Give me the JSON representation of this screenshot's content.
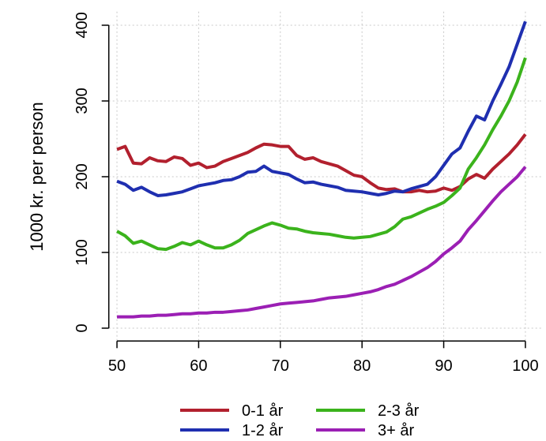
{
  "chart_data": {
    "type": "line",
    "y_label": "1000 kr. per person",
    "x": [
      50,
      51,
      52,
      53,
      54,
      55,
      56,
      57,
      58,
      59,
      60,
      61,
      62,
      63,
      64,
      65,
      66,
      67,
      68,
      69,
      70,
      71,
      72,
      73,
      74,
      75,
      76,
      77,
      78,
      79,
      80,
      81,
      82,
      83,
      84,
      85,
      86,
      87,
      88,
      89,
      90,
      91,
      92,
      93,
      94,
      95,
      96,
      97,
      98,
      99,
      100
    ],
    "series": [
      {
        "name": "0-1 år",
        "color": "#b2202e",
        "values": [
          236,
          240,
          218,
          217,
          225,
          221,
          220,
          226,
          224,
          215,
          218,
          212,
          214,
          220,
          224,
          228,
          232,
          238,
          243,
          242,
          240,
          240,
          228,
          223,
          225,
          220,
          217,
          214,
          208,
          202,
          200,
          192,
          185,
          183,
          184,
          180,
          180,
          182,
          180,
          181,
          185,
          182,
          187,
          197,
          203,
          198,
          210,
          220,
          230,
          242,
          256
        ]
      },
      {
        "name": "1-2 år",
        "color": "#1f2fb0",
        "values": [
          194,
          190,
          182,
          186,
          180,
          175,
          176,
          178,
          180,
          184,
          188,
          190,
          192,
          195,
          196,
          200,
          206,
          207,
          214,
          207,
          205,
          203,
          197,
          192,
          193,
          190,
          188,
          186,
          182,
          181,
          180,
          178,
          176,
          178,
          181,
          180,
          184,
          187,
          190,
          200,
          215,
          230,
          238,
          260,
          280,
          275,
          300,
          322,
          345,
          375,
          405
        ]
      },
      {
        "name": "2-3 år",
        "color": "#3bb31c",
        "values": [
          128,
          122,
          112,
          115,
          110,
          105,
          104,
          108,
          113,
          110,
          115,
          110,
          106,
          106,
          110,
          116,
          125,
          130,
          135,
          139,
          136,
          132,
          131,
          128,
          126,
          125,
          124,
          122,
          120,
          119,
          120,
          121,
          124,
          127,
          134,
          144,
          147,
          152,
          157,
          161,
          166,
          175,
          185,
          210,
          225,
          242,
          262,
          280,
          300,
          325,
          357
        ]
      },
      {
        "name": "3+ år",
        "color": "#9b1fb4",
        "values": [
          15,
          15,
          15,
          16,
          16,
          17,
          17,
          18,
          19,
          19,
          20,
          20,
          21,
          21,
          22,
          23,
          24,
          26,
          28,
          30,
          32,
          33,
          34,
          35,
          36,
          38,
          40,
          41,
          42,
          44,
          46,
          48,
          51,
          55,
          58,
          63,
          68,
          74,
          80,
          88,
          98,
          106,
          115,
          130,
          142,
          155,
          168,
          180,
          190,
          200,
          213
        ]
      }
    ],
    "xlim": [
      49,
      102
    ],
    "ylim": [
      -17,
      418
    ],
    "xticks": [
      50,
      60,
      70,
      80,
      90,
      100
    ],
    "yticks": [
      0,
      100,
      200,
      300,
      400
    ],
    "grid": true,
    "legend": "bottom"
  }
}
